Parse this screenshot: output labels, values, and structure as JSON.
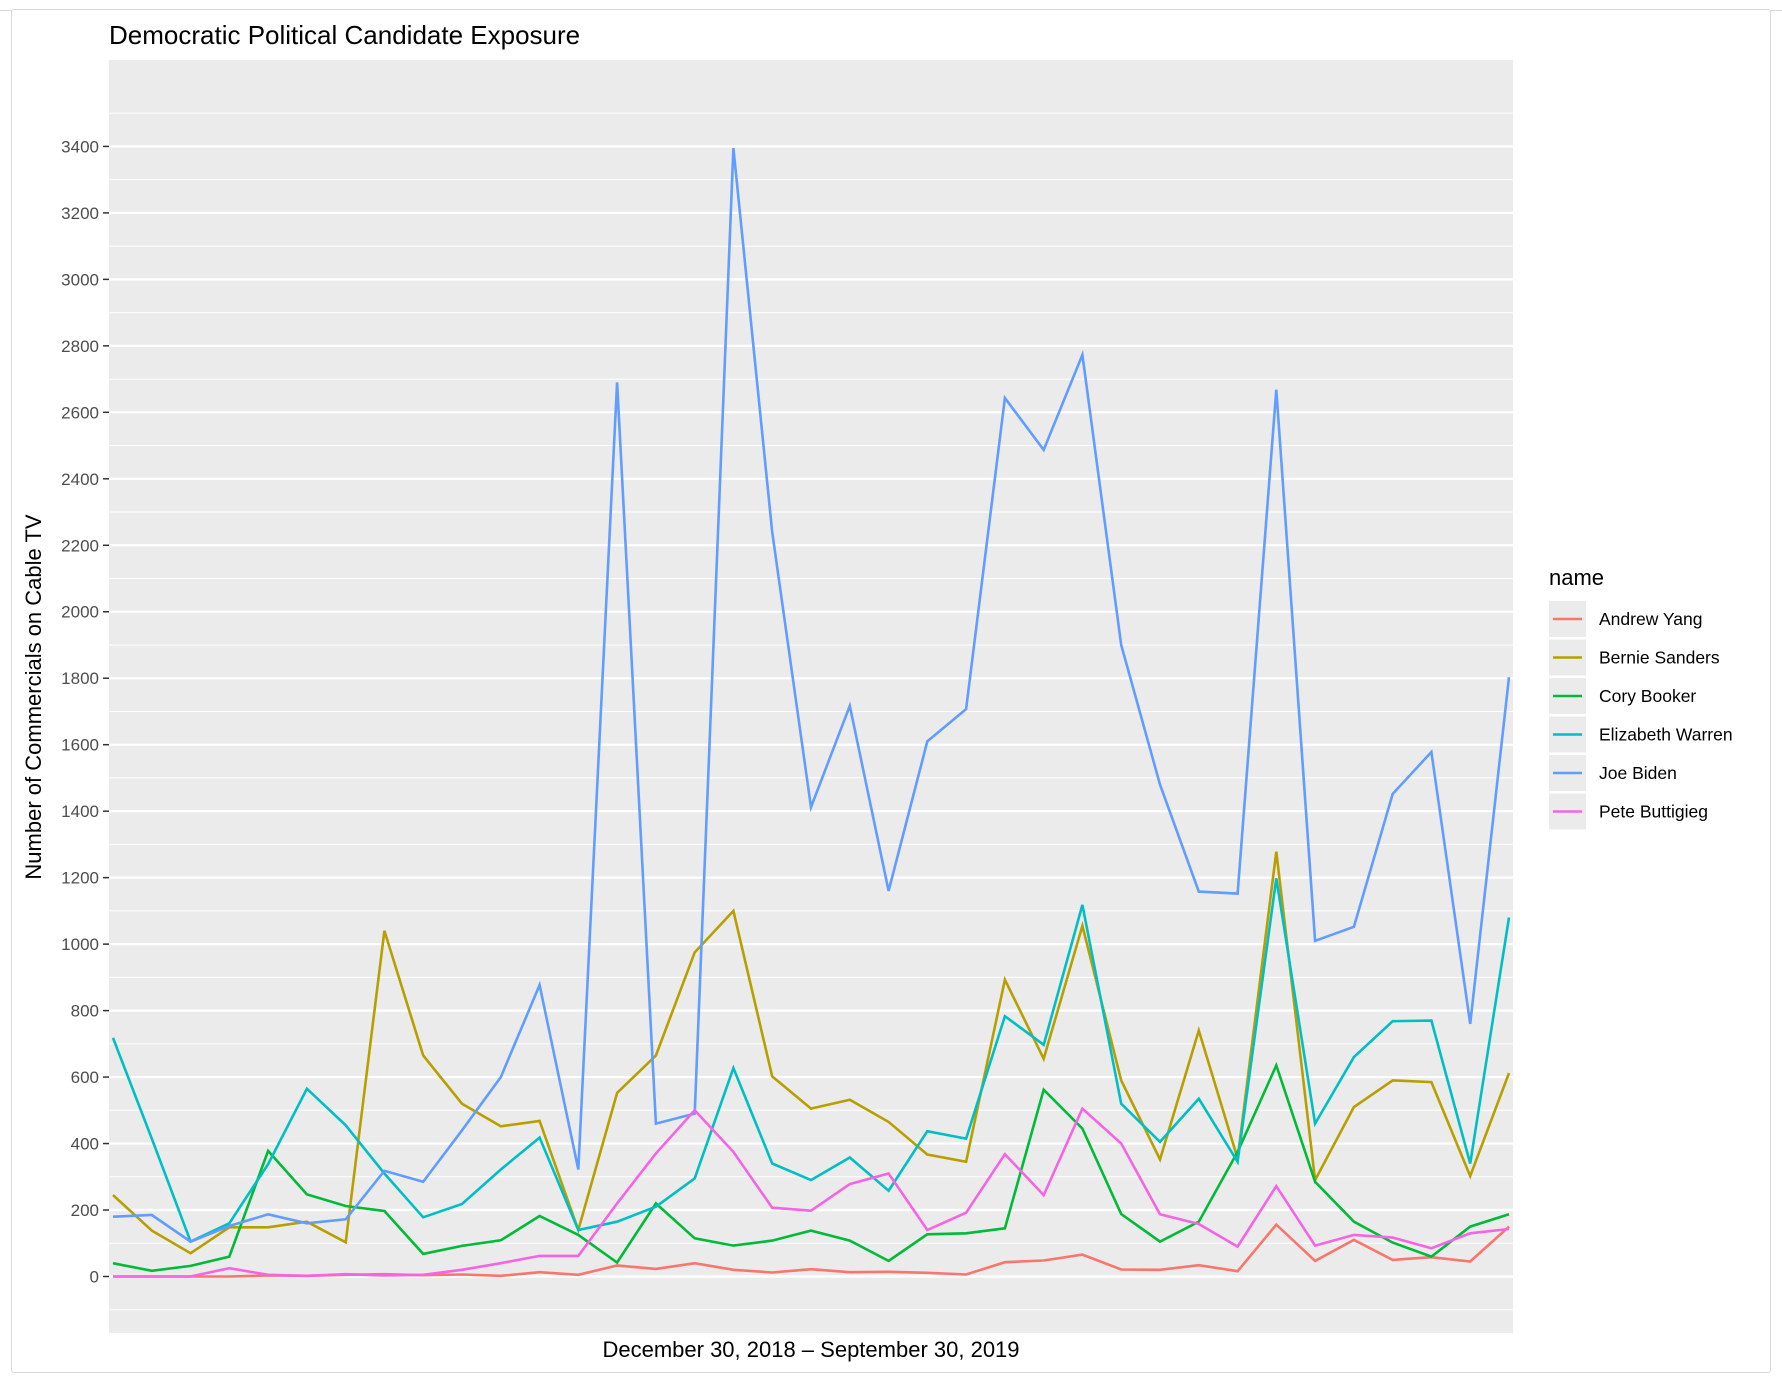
{
  "chart_data": {
    "type": "line",
    "title": "Democratic Political Candidate Exposure",
    "xlabel": "December 30, 2018 – September 30, 2019",
    "ylabel": "Number of Commercials on Cable TV",
    "ylim": [
      -170,
      3660
    ],
    "yticks": [
      0,
      200,
      400,
      600,
      800,
      1000,
      1200,
      1400,
      1600,
      1800,
      2000,
      2200,
      2400,
      2600,
      2800,
      3000,
      3200,
      3400
    ],
    "ytick_labels": [
      "0",
      "200",
      "400",
      "600",
      "800",
      "1000",
      "1200",
      "1400",
      "1600",
      "1800",
      "2000",
      "2200",
      "2400",
      "2600",
      "2800",
      "3000",
      "3200",
      "3400"
    ],
    "x": [
      1,
      2,
      3,
      4,
      5,
      6,
      7,
      8,
      9,
      10,
      11,
      12,
      13,
      14,
      15,
      16,
      17,
      18,
      19,
      20,
      21,
      22,
      23,
      24,
      25,
      26,
      27,
      28,
      29,
      30,
      31,
      32,
      33,
      34,
      35,
      36,
      37
    ],
    "grid": true,
    "legend_title": "name",
    "legend_position": "right",
    "series": [
      {
        "name": "Andrew Yang",
        "color": "#F8766D",
        "values": [
          0,
          0,
          0,
          0,
          3,
          2,
          5,
          7,
          4,
          6,
          2,
          13,
          5,
          33,
          23,
          40,
          20,
          12,
          22,
          13,
          14,
          11,
          6,
          43,
          48,
          66,
          21,
          20,
          34,
          16,
          156,
          47,
          110,
          50,
          58,
          45,
          150
        ]
      },
      {
        "name": "Bernie Sanders",
        "color": "#B79F00",
        "values": [
          245,
          138,
          70,
          148,
          148,
          165,
          103,
          1040,
          665,
          520,
          452,
          468,
          140,
          552,
          665,
          975,
          1100,
          602,
          505,
          532,
          465,
          367,
          345,
          893,
          655,
          1055,
          590,
          352,
          740,
          355,
          1278,
          290,
          510,
          590,
          585,
          302,
          612
        ]
      },
      {
        "name": "Cory Booker",
        "color": "#00BA38",
        "values": [
          40,
          17,
          32,
          60,
          378,
          247,
          212,
          197,
          68,
          92,
          109,
          182,
          125,
          42,
          220,
          115,
          93,
          108,
          138,
          108,
          47,
          127,
          130,
          145,
          562,
          445,
          188,
          105,
          165,
          375,
          635,
          285,
          165,
          102,
          60,
          150,
          187
        ]
      },
      {
        "name": "Elizabeth Warren",
        "color": "#00BFC4",
        "values": [
          718,
          415,
          105,
          160,
          338,
          565,
          455,
          310,
          178,
          218,
          322,
          418,
          140,
          165,
          210,
          295,
          627,
          340,
          290,
          358,
          258,
          437,
          415,
          783,
          697,
          1118,
          520,
          405,
          535,
          345,
          1198,
          460,
          660,
          768,
          770,
          340,
          1080
        ]
      },
      {
        "name": "Joe Biden",
        "color": "#619CFF",
        "values": [
          180,
          185,
          105,
          152,
          187,
          160,
          172,
          318,
          285,
          440,
          600,
          877,
          322,
          2690,
          460,
          490,
          3395,
          2240,
          1412,
          1717,
          1160,
          1610,
          1707,
          2643,
          2487,
          2773,
          1900,
          1480,
          1158,
          1152,
          2668,
          1010,
          1052,
          1452,
          1578,
          760,
          1803
        ]
      },
      {
        "name": "Pete Buttigieg",
        "color": "#F564E3",
        "values": [
          0,
          0,
          0,
          25,
          5,
          2,
          7,
          3,
          5,
          20,
          40,
          62,
          62,
          220,
          370,
          500,
          375,
          207,
          198,
          278,
          310,
          140,
          192,
          368,
          245,
          505,
          400,
          187,
          158,
          90,
          272,
          93,
          125,
          117,
          85,
          130,
          143
        ]
      }
    ]
  }
}
